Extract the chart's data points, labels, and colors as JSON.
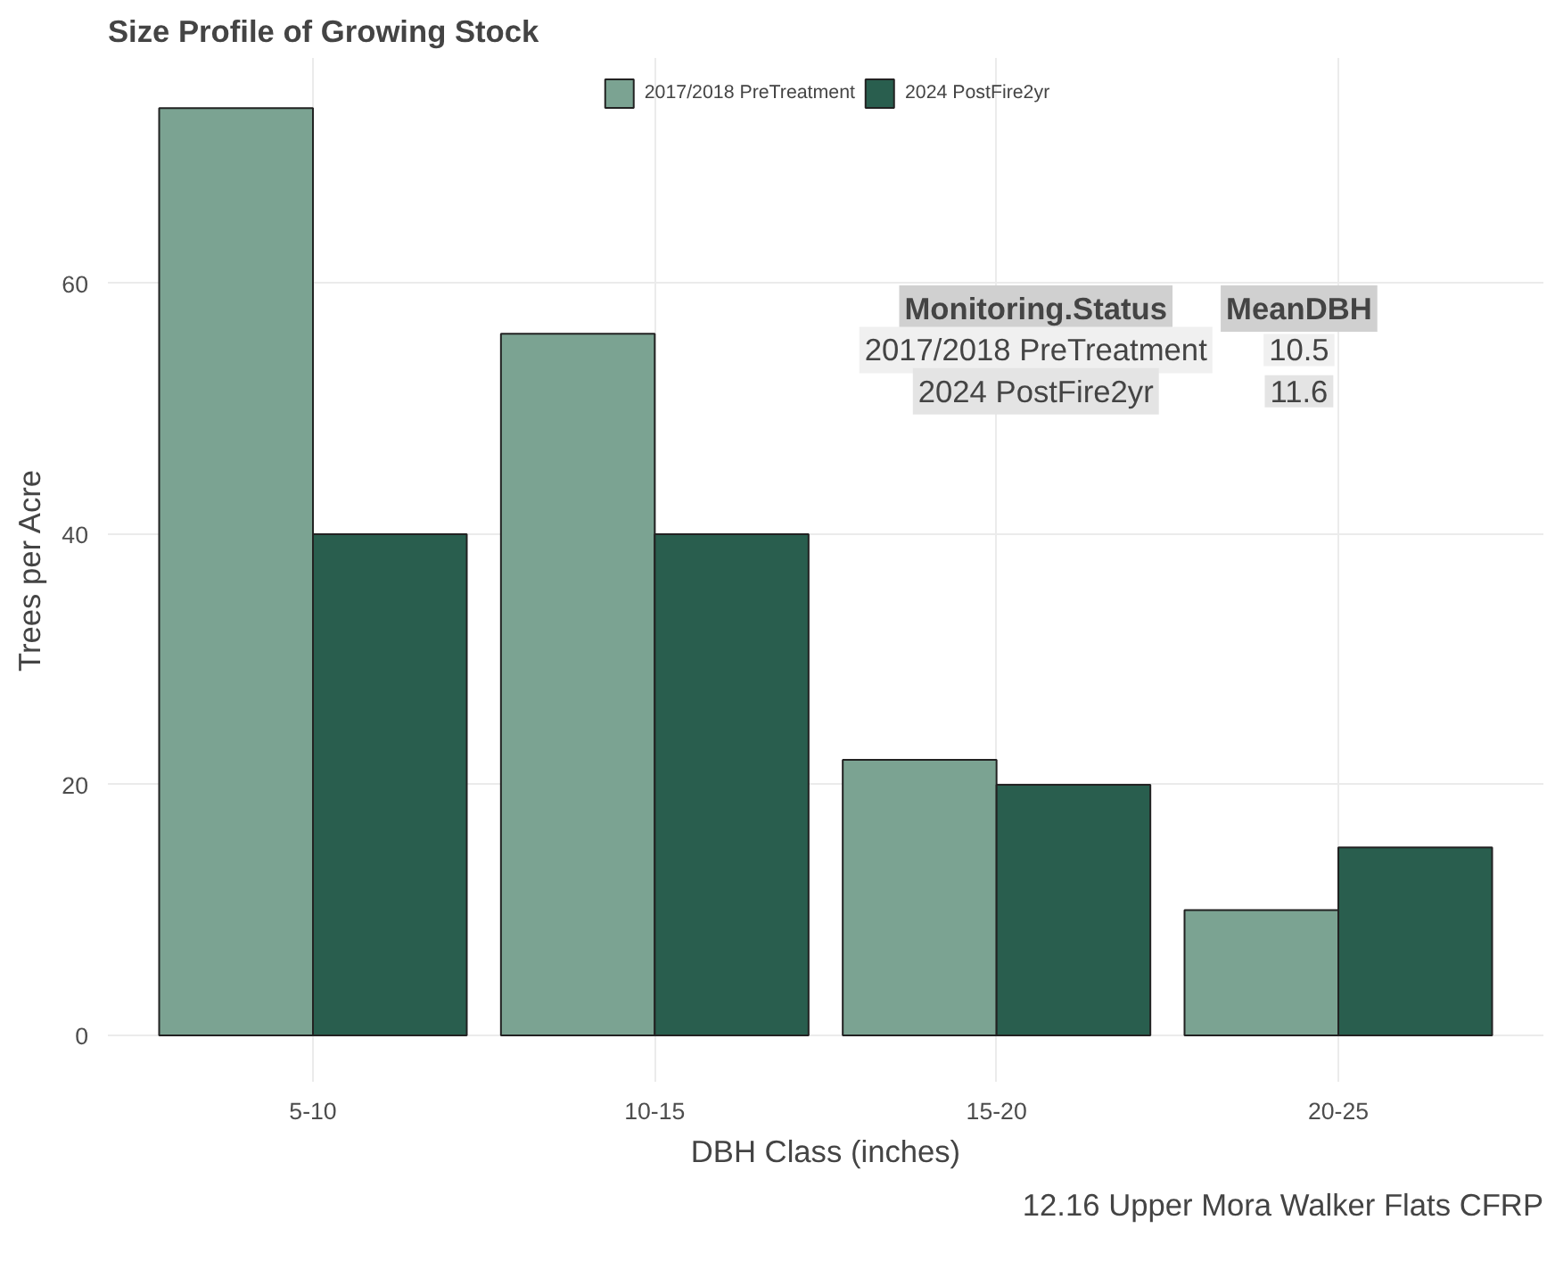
{
  "chart_data": {
    "type": "bar",
    "title": "Size Profile of Growing Stock",
    "xlabel": "DBH Class (inches)",
    "ylabel": "Trees per Acre",
    "categories": [
      "5-10",
      "10-15",
      "15-20",
      "20-25"
    ],
    "series": [
      {
        "name": "2017/2018 PreTreatment",
        "color": "#7ba392",
        "values": [
          74,
          56,
          22,
          10
        ]
      },
      {
        "name": "2024 PostFire2yr",
        "color": "#295e4e",
        "values": [
          40,
          40,
          20,
          15
        ]
      }
    ],
    "ylim": [
      -3.7,
      78
    ],
    "yticks": [
      0,
      20,
      40,
      60
    ],
    "grid": true,
    "legend": "top",
    "annotations": [
      "Monitoring.Status",
      "MeanDBH",
      "2017/2018 PreTreatment",
      "10.5",
      "2024 PostFire2yr",
      "11.6",
      "12.16 Upper Mora Walker Flats CFRP"
    ]
  }
}
